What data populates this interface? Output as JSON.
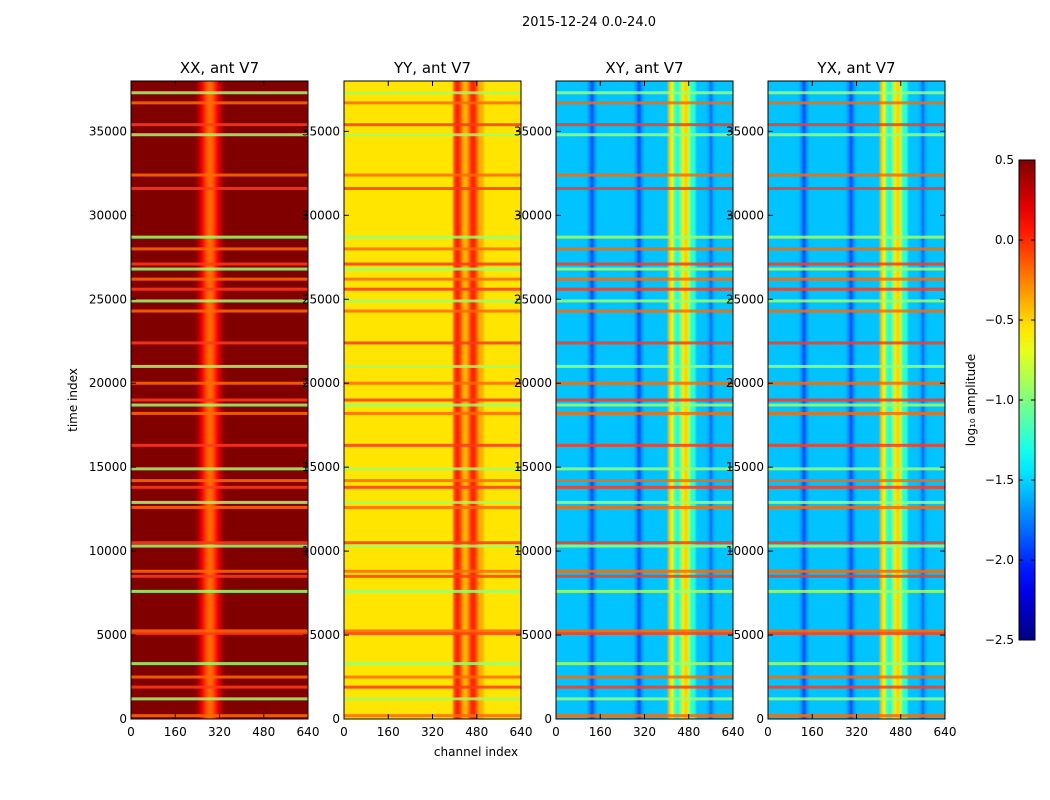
{
  "chart_data": {
    "type": "heatmap",
    "suptitle": "2015-12-24 0.0-24.0",
    "xlabel": "channel index",
    "ylabel": "time index",
    "x_ticks": [
      "0",
      "160",
      "320",
      "480",
      "640"
    ],
    "xlim": [
      0,
      640
    ],
    "y_ticks": [
      "0",
      "5000",
      "10000",
      "15000",
      "20000",
      "25000",
      "30000",
      "35000"
    ],
    "ylim": [
      0,
      38000
    ],
    "panels": [
      {
        "title": "XX, ant V7",
        "base_level": 0.55,
        "peak_channel": 285,
        "peak_drop": 0.75,
        "rfi_band": [
          0,
          0
        ]
      },
      {
        "title": "YY, ant V7",
        "base_level": -0.55,
        "peak_channel": 0,
        "peak_drop": 0,
        "rfi_band": [
          400,
          500
        ]
      },
      {
        "title": "XY, ant V7",
        "base_level": -1.55,
        "peak_channel": 0,
        "peak_drop": 0,
        "rfi_band": [
          410,
          500
        ]
      },
      {
        "title": "YX, ant V7",
        "base_level": -1.55,
        "peak_channel": 0,
        "peak_drop": 0,
        "rfi_band": [
          410,
          500
        ]
      }
    ],
    "flag_rows": [
      200,
      1200,
      1900,
      2500,
      3300,
      5100,
      5250,
      7600,
      8500,
      8800,
      10300,
      10500,
      12600,
      12900,
      13800,
      14200,
      14900,
      16300,
      18200,
      18700,
      19000,
      20000,
      21000,
      22400,
      24300,
      24900,
      25600,
      26200,
      26800,
      27100,
      28000,
      28700,
      31600,
      32400,
      34800,
      35400,
      36700,
      37300
    ],
    "colorbar": {
      "label": "log₁₀ amplitude",
      "range": [
        -2.5,
        0.5
      ],
      "ticks": [
        "0.5",
        "0.0",
        "−0.5",
        "−1.0",
        "−1.5",
        "−2.0",
        "−2.5"
      ],
      "colormap": "jet"
    }
  }
}
